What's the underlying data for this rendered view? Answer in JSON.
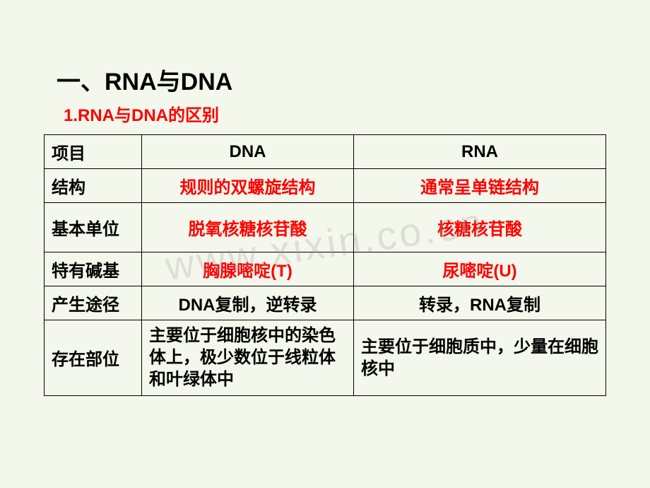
{
  "heading": "一、RNA与DNA",
  "subheading": "1.RNA与DNA的区别",
  "watermark": "www.xixin.co.cn",
  "colors": {
    "background": "#f4f7eb",
    "accent_red": "#ff0000",
    "text": "#000000",
    "border": "#000000",
    "watermark": "rgba(150,150,150,0.25)"
  },
  "table": {
    "headers": [
      "项目",
      "DNA",
      "RNA"
    ],
    "rows": [
      {
        "label": "结构",
        "dna": {
          "text": "规则的双螺旋结构",
          "color": "red",
          "align": "center"
        },
        "rna": {
          "text": "通常呈单链结构",
          "color": "red",
          "align": "center"
        }
      },
      {
        "label": "基本单位",
        "dna": {
          "text": "脱氧核糖核苷酸",
          "color": "red",
          "align": "center"
        },
        "rna": {
          "text": "核糖核苷酸",
          "color": "red",
          "align": "center"
        },
        "tall": true
      },
      {
        "label": "特有碱基",
        "dna": {
          "text": "胸腺嘧啶(T)",
          "color": "red",
          "align": "center"
        },
        "rna": {
          "text": "尿嘧啶(U)",
          "color": "red",
          "align": "center"
        }
      },
      {
        "label": "产生途径",
        "dna": {
          "text": "DNA复制，逆转录",
          "color": "black",
          "align": "center"
        },
        "rna": {
          "text": "转录，RNA复制",
          "color": "black",
          "align": "center"
        }
      },
      {
        "label": "存在部位",
        "dna": {
          "text": "主要位于细胞核中的染色体上，极少数位于线粒体和叶绿体中",
          "color": "black",
          "align": "left"
        },
        "rna": {
          "text": "主要位于细胞质中，少量在细胞核中",
          "color": "black",
          "align": "left"
        }
      }
    ]
  }
}
